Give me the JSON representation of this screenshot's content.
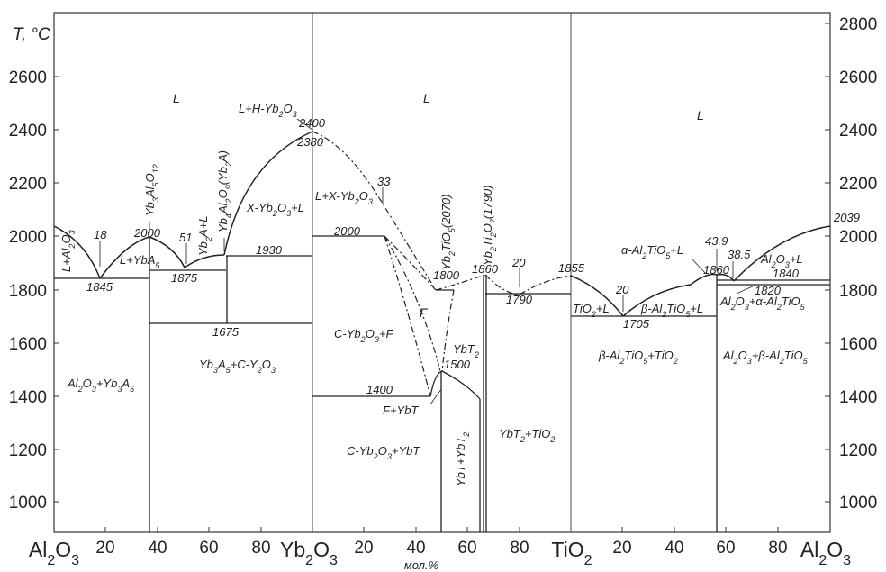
{
  "axes": {
    "y_title": "T, °C",
    "y_ticks_left": [
      "1000",
      "1200",
      "1400",
      "1600",
      "1800",
      "2000",
      "2200",
      "2400",
      "2600"
    ],
    "y_ticks_right": [
      "1000",
      "1200",
      "1400",
      "1600",
      "1800",
      "2000",
      "2200",
      "2400",
      "2600",
      "2800"
    ],
    "x_ticks": [
      "20",
      "40",
      "60",
      "80",
      "20",
      "40",
      "60",
      "80",
      "20",
      "40",
      "60",
      "80"
    ],
    "x_unit": "мол.%"
  },
  "components": [
    "Al2O3",
    "Yb2O3",
    "TiO2",
    "Al2O3"
  ],
  "phase_labels": {
    "L1": "L",
    "L2": "L",
    "L3": "L",
    "l_al2o3": "L+Al2O3",
    "l_yba5": "L+YbA5",
    "yb3al5o12": "Yb3Al5O12",
    "yb2al_l": "Yb2A+L",
    "yb4al2o9": "Yb4Al2O9(Yb2A)",
    "l_h_yb2o3": "L+H-Yb2O3",
    "x_yb2o3_l": "X-Yb2O3+L",
    "l_x_yb2o3": "L+X-Yb2O3",
    "yb2tio5": "Yb2TiO5(2070)",
    "yb2ti2o7": "Yb2Ti2O7(1790)",
    "al2o3_yb3a5": "Al2O3+Yb3A5",
    "yb3a5_cy2o3": "Yb3A5+C-Y2O3",
    "c_yb2o3_f": "C-Yb2O3+F",
    "f": "F",
    "ybt2": "YbT2",
    "f_ybt": "F+YbT",
    "c_yb2o3_ybt": "C-Yb2O3+YbT",
    "ybt_ybt2": "YbT+YbT2",
    "ybt2_tio2": "YbT2+TiO2",
    "tio2_l": "TiO2+L",
    "alpha_l": "α-Al2TiO5+L",
    "beta_l": "β-Al2TiO5+L",
    "beta_tio2": "β-Al2TiO5+TiO2",
    "al2o3_l": "Al2O3+L",
    "al2o3_alpha": "Al2O3+α-Al2TiO5",
    "al2o3_beta": "Al2O3+β-Al2TiO5"
  },
  "annotations": {
    "t1845": "1845",
    "c18a": "18",
    "t2000a": "2000",
    "c51": "51",
    "t1875": "1875",
    "t1930": "1930",
    "t1675": "1675",
    "t2400": "2400",
    "t2380": "2380",
    "c33": "33",
    "t2000b": "2000",
    "t1400": "1400",
    "t1800": "1800",
    "t1500": "1500",
    "t1860a": "1860",
    "c20a": "20",
    "t1790": "1790",
    "t1855": "1855",
    "c20b": "20",
    "t1705": "1705",
    "c43_9": "43.9",
    "c38_5": "38.5",
    "t1860b": "1860",
    "t1840": "1840",
    "t1820": "1820",
    "t2039": "2039"
  }
}
